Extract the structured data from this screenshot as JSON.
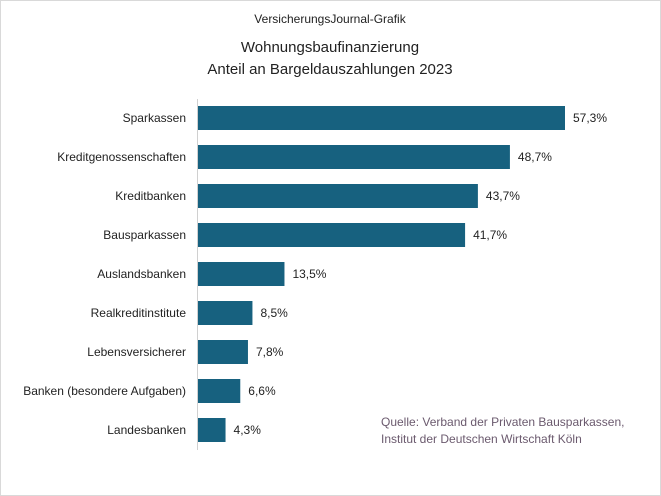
{
  "chart_data": {
    "type": "bar",
    "orientation": "horizontal",
    "supertitle": "VersicherungsJournal-Grafik",
    "title": [
      "Wohnungsbaufinanzierung",
      "Anteil an Bargeldauszahlungen  2023"
    ],
    "categories": [
      "Sparkassen",
      "Kreditgenossenschaften",
      "Kreditbanken",
      "Bausparkassen",
      "Auslandsbanken",
      "Realkreditinstitute",
      "Lebensversicherer",
      "Banken (besondere Aufgaben)",
      "Landesbanken"
    ],
    "values": [
      57.3,
      48.7,
      43.7,
      41.7,
      13.5,
      8.5,
      7.8,
      6.6,
      4.3
    ],
    "data_labels": [
      "57,3%",
      "48,7%",
      "43,7%",
      "41,7%",
      "13,5%",
      "8,5%",
      "7,8%",
      "6,6%",
      "4,3%"
    ],
    "unit": "%",
    "source": [
      "Quelle: Verband der Privaten Bausparkassen,",
      "Institut der Deutschen Wirtschaft Köln"
    ],
    "grid": false,
    "legend": "none",
    "colors": {
      "bar": "#17617F",
      "source_text": "#6b5a6e"
    }
  }
}
